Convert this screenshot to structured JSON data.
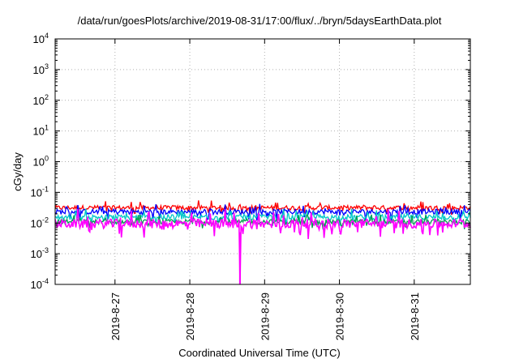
{
  "chart_data": {
    "type": "line",
    "title": "/data/run/goesPlots/archive/2019-08-31/17:00/flux/../bryn/5daysEarthData.plot",
    "xlabel": "Coordinated Universal Time (UTC)",
    "ylabel": "cGy/day",
    "yscale": "log",
    "ylim": [
      0.0001,
      10000
    ],
    "xlim_days": [
      26.2,
      31.75
    ],
    "x_ticks": [
      "2019-8-27",
      "2019-8-28",
      "2019-8-29",
      "2019-8-30",
      "2019-8-31"
    ],
    "y_ticks": [
      {
        "base": "10",
        "exp": "-4"
      },
      {
        "base": "10",
        "exp": "-3"
      },
      {
        "base": "10",
        "exp": "-2"
      },
      {
        "base": "10",
        "exp": "-1"
      },
      {
        "base": "10",
        "exp": "0"
      },
      {
        "base": "10",
        "exp": "1"
      },
      {
        "base": "10",
        "exp": "2"
      },
      {
        "base": "10",
        "exp": "3"
      },
      {
        "base": "10",
        "exp": "4"
      }
    ],
    "grid": true,
    "series": [
      {
        "color": "#ff0000",
        "low": 0.018,
        "high": 0.055
      },
      {
        "color": "#0000ff",
        "low": 0.012,
        "high": 0.045
      },
      {
        "color": "#00c8c8",
        "low": 0.008,
        "high": 0.03
      },
      {
        "color": "#00a050",
        "low": 0.006,
        "high": 0.02
      },
      {
        "color": "#ff00ff",
        "low": 0.003,
        "high": 0.03,
        "dropout_day": 28.67,
        "dropout_value": 0.0001
      }
    ]
  }
}
